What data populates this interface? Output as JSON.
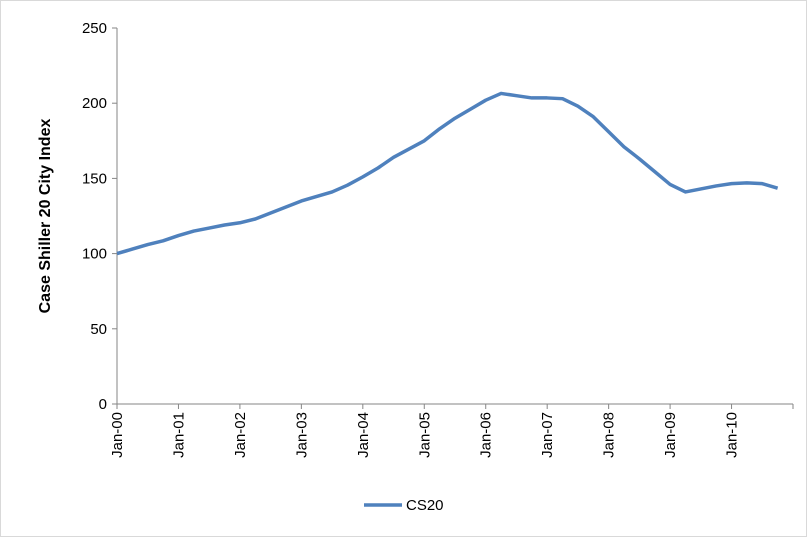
{
  "chart_data": {
    "type": "line",
    "y_label": "Case Shiller 20 City Index",
    "categories": [
      "Jan-00",
      null,
      null,
      null,
      "Jan-01",
      null,
      null,
      null,
      "Jan-02",
      null,
      null,
      null,
      "Jan-03",
      null,
      null,
      null,
      "Jan-04",
      null,
      null,
      null,
      "Jan-05",
      null,
      null,
      null,
      "Jan-06",
      null,
      null,
      null,
      "Jan-07",
      null,
      null,
      null,
      "Jan-08",
      null,
      null,
      null,
      "Jan-09",
      null,
      null,
      null,
      "Jan-10",
      null,
      null,
      null
    ],
    "series": [
      {
        "name": "CS20",
        "color": "#4f81bd",
        "values": [
          100,
          103,
          106,
          108.5,
          112,
          115,
          117,
          119,
          120.5,
          123,
          127,
          131,
          135,
          138,
          141,
          145.5,
          151,
          157,
          164,
          169.5,
          175,
          183,
          190,
          196,
          202,
          206.5,
          205,
          203.5,
          203.5,
          203,
          198,
          191,
          181,
          171,
          163,
          154.5,
          146,
          141,
          143,
          145,
          146.5,
          147,
          146.5,
          143.5
        ]
      }
    ],
    "ylim": [
      0,
      250
    ],
    "yticks": [
      0,
      50,
      100,
      150,
      200,
      250
    ],
    "legend": "bottom"
  }
}
